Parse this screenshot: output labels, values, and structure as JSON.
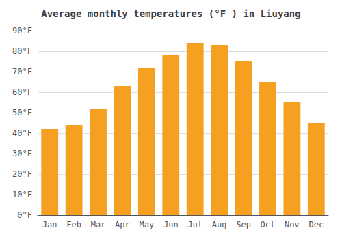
{
  "chart_data": {
    "type": "bar",
    "title": "Average monthly temperatures (°F ) in Liuyang",
    "categories": [
      "Jan",
      "Feb",
      "Mar",
      "Apr",
      "May",
      "Jun",
      "Jul",
      "Aug",
      "Sep",
      "Oct",
      "Nov",
      "Dec"
    ],
    "values": [
      42,
      44,
      52,
      63,
      72,
      78,
      84,
      83,
      75,
      65,
      55,
      45
    ],
    "color": "#F5A020",
    "ylim": [
      0,
      90
    ],
    "yticks": [
      {
        "value": 0,
        "label": "0°F"
      },
      {
        "value": 10,
        "label": "10°F"
      },
      {
        "value": 20,
        "label": "20°F"
      },
      {
        "value": 30,
        "label": "30°F"
      },
      {
        "value": 40,
        "label": "40°F"
      },
      {
        "value": 50,
        "label": "50°F"
      },
      {
        "value": 60,
        "label": "60°F"
      },
      {
        "value": 70,
        "label": "70°F"
      },
      {
        "value": 80,
        "label": "80°F"
      },
      {
        "value": 90,
        "label": "90°F"
      }
    ],
    "grid": true
  }
}
